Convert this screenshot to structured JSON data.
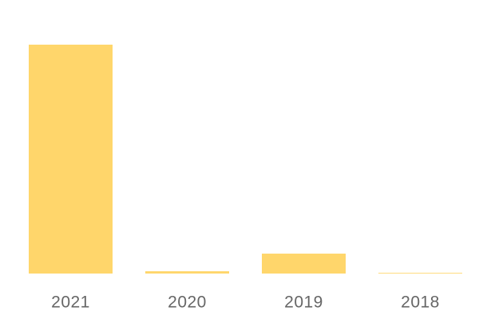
{
  "chart_data": {
    "type": "bar",
    "categories": [
      "2021",
      "2020",
      "2019",
      "2018"
    ],
    "values": [
      100,
      1,
      8.7,
      0.3
    ],
    "color": "#ffd66b"
  }
}
